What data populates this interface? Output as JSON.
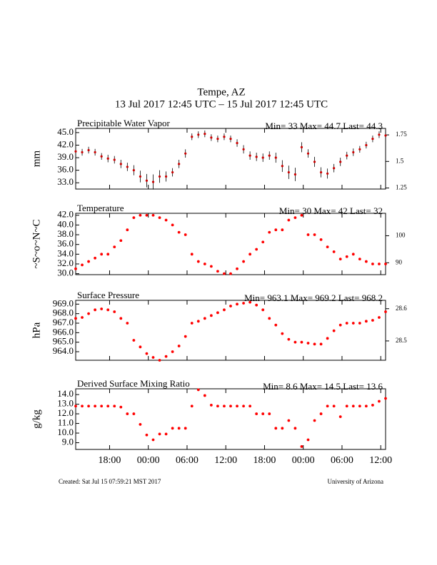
{
  "title": "Tempe, AZ",
  "subtitle": "13 Jul 2017 12:45 UTC – 15 Jul 2017 12:45 UTC",
  "footer_left": "Created: Sat Jul 15 07:59:21 MST 2017",
  "footer_right": "University of Arizona",
  "chart_data": [
    {
      "type": "errorbar",
      "title": "Precipitable Water Vapor",
      "stats": "Min= 33 Max= 44.7 Last= 44.3",
      "ylabel": "mm",
      "color": "#cc0000",
      "x": [
        0,
        1,
        2,
        3,
        4,
        5,
        6,
        7,
        8,
        9,
        10,
        11,
        12,
        13,
        14,
        15,
        16,
        17,
        18,
        19,
        20,
        21,
        22,
        23,
        24,
        25,
        26,
        27,
        28,
        29,
        30,
        31,
        32,
        33,
        34,
        35,
        36,
        37,
        38,
        39,
        40,
        41,
        42,
        43,
        44,
        45,
        46,
        47,
        48
      ],
      "values": [
        40.5,
        40.3,
        40.8,
        40.3,
        39.3,
        38.8,
        38.5,
        37.5,
        36.8,
        36,
        34.5,
        33.5,
        33.2,
        34.5,
        34.5,
        35.5,
        37.5,
        40,
        44,
        44.5,
        44.7,
        43.8,
        43.5,
        44,
        43.5,
        42.5,
        41,
        39.5,
        39.2,
        39,
        39.5,
        39,
        37,
        35.5,
        35,
        41.5,
        40,
        38,
        35.5,
        35.2,
        36.5,
        38,
        39.5,
        40.3,
        41,
        42,
        43.5,
        44.5,
        44.3
      ],
      "errors": [
        0.8,
        0.8,
        0.8,
        0.8,
        0.8,
        0.9,
        0.9,
        1,
        1,
        1.2,
        1.4,
        1.6,
        1.8,
        1.5,
        1.2,
        1,
        1,
        1,
        0.8,
        0.8,
        0.8,
        0.8,
        0.8,
        0.8,
        0.8,
        0.9,
        1,
        1,
        1,
        1,
        1,
        1.2,
        1.4,
        1.6,
        1.6,
        1.2,
        1,
        1.2,
        1.2,
        1.2,
        1,
        1,
        0.9,
        0.9,
        0.8,
        0.8,
        0.8,
        0.8,
        0.8
      ],
      "xlim": [
        0,
        48
      ],
      "ylim": [
        31.5,
        46
      ],
      "yticks": [
        {
          "value": 33,
          "label": "33.0"
        },
        {
          "value": 36,
          "label": "36.0"
        },
        {
          "value": 39,
          "label": "39.0"
        },
        {
          "value": 42,
          "label": "42.0"
        },
        {
          "value": 45,
          "label": "45.0"
        }
      ],
      "y2lim": [
        1.24,
        1.811
      ],
      "y2ticks": [
        1.25,
        1.5,
        1.75
      ]
    },
    {
      "type": "scatter",
      "title": "Temperature",
      "stats": "Min= 30 Max= 42 Last= 32",
      "ylabel": "~S~o~N~C",
      "color": "#ff0000",
      "x": [
        0,
        1,
        2,
        3,
        4,
        5,
        6,
        7,
        8,
        9,
        10,
        11,
        12,
        13,
        14,
        15,
        16,
        17,
        18,
        19,
        20,
        21,
        22,
        23,
        24,
        25,
        26,
        27,
        28,
        29,
        30,
        31,
        32,
        33,
        34,
        35,
        36,
        37,
        38,
        39,
        40,
        41,
        42,
        43,
        44,
        45,
        46,
        47,
        48
      ],
      "values": [
        31,
        31.8,
        32.5,
        33.2,
        34,
        34,
        35.5,
        36.8,
        39,
        41.5,
        42,
        42,
        42,
        41.5,
        41,
        40,
        38.5,
        38,
        34,
        32.5,
        32,
        31.5,
        30.5,
        30,
        30,
        31,
        32.5,
        34,
        35,
        36.5,
        38.5,
        39,
        39,
        41,
        41.5,
        42,
        38,
        38,
        37,
        35.5,
        34.5,
        33,
        33.5,
        34,
        33,
        32.5,
        32,
        32,
        32
      ],
      "xlim": [
        0,
        48
      ],
      "ylim": [
        29.8,
        42.4
      ],
      "yticks": [
        {
          "value": 30,
          "label": "30.0"
        },
        {
          "value": 32,
          "label": "32.0"
        },
        {
          "value": 34,
          "label": "34.0"
        },
        {
          "value": 36,
          "label": "36.0"
        },
        {
          "value": 38,
          "label": "38.0"
        },
        {
          "value": 40,
          "label": "40.0"
        },
        {
          "value": 42,
          "label": "42.0"
        }
      ],
      "y2lim": [
        85.6,
        108.3
      ],
      "y2ticks": [
        90,
        100
      ]
    },
    {
      "type": "scatter",
      "title": "Surface Pressure",
      "stats": "Min= 963.1 Max= 969.2 Last= 968.2",
      "ylabel": "hPa",
      "color": "#ff0000",
      "x": [
        0,
        1,
        2,
        3,
        4,
        5,
        6,
        7,
        8,
        9,
        10,
        11,
        12,
        13,
        14,
        15,
        16,
        17,
        18,
        19,
        20,
        21,
        22,
        23,
        24,
        25,
        26,
        27,
        28,
        29,
        30,
        31,
        32,
        33,
        34,
        35,
        36,
        37,
        38,
        39,
        40,
        41,
        42,
        43,
        44,
        45,
        46,
        47,
        48
      ],
      "values": [
        967.5,
        967.6,
        968,
        968.4,
        968.5,
        968.4,
        968.2,
        967.5,
        967,
        965.2,
        964.5,
        963.8,
        963.4,
        963.1,
        963.5,
        964,
        964.6,
        965.6,
        967,
        967.2,
        967.5,
        967.8,
        968.1,
        968.4,
        968.8,
        969,
        969.1,
        969.2,
        968.9,
        968.4,
        967.5,
        966.8,
        965.9,
        965.3,
        965,
        965,
        964.9,
        964.8,
        964.8,
        965.4,
        966.2,
        966.8,
        967,
        967,
        967,
        967.2,
        967.3,
        967.6,
        968.2
      ],
      "xlim": [
        0,
        48
      ],
      "ylim": [
        963.1,
        969.4
      ],
      "yticks": [
        {
          "value": 964,
          "label": "964.0"
        },
        {
          "value": 965,
          "label": "965.0"
        },
        {
          "value": 966,
          "label": "966.0"
        },
        {
          "value": 967,
          "label": "967.0"
        },
        {
          "value": 968,
          "label": "968.0"
        },
        {
          "value": 969,
          "label": "969.0"
        }
      ],
      "y2lim": [
        28.44,
        28.626
      ],
      "y2ticks": [
        28.5,
        28.6
      ]
    },
    {
      "type": "scatter",
      "title": "Derived Surface Mixing Ratio",
      "stats": "Min= 8.6 Max= 14.5 Last= 13.6",
      "ylabel": "g/kg",
      "color": "#ff0000",
      "x": [
        0,
        1,
        2,
        3,
        4,
        5,
        6,
        7,
        8,
        9,
        10,
        11,
        12,
        13,
        14,
        15,
        16,
        17,
        18,
        19,
        20,
        21,
        22,
        23,
        24,
        25,
        26,
        27,
        28,
        29,
        30,
        31,
        32,
        33,
        34,
        35,
        36,
        37,
        38,
        39,
        40,
        41,
        42,
        43,
        44,
        45,
        46,
        47,
        48
      ],
      "values": [
        12.8,
        12.8,
        12.8,
        12.8,
        12.8,
        12.8,
        12.8,
        12.7,
        12,
        12,
        10.9,
        9.8,
        9.3,
        9.9,
        9.9,
        10.5,
        10.5,
        10.5,
        12.8,
        14.5,
        13.9,
        12.9,
        12.8,
        12.8,
        12.8,
        12.8,
        12.8,
        12.8,
        12,
        12,
        12,
        10.5,
        10.5,
        11.3,
        10.5,
        8.6,
        9.3,
        11.3,
        12,
        12.8,
        12.8,
        11.7,
        12.8,
        12.8,
        12.8,
        12.8,
        12.9,
        13.3,
        13.6
      ],
      "xlim": [
        0,
        48
      ],
      "ylim": [
        8.3,
        14.6
      ],
      "yticks": [
        {
          "value": 9,
          "label": "9.0"
        },
        {
          "value": 10,
          "label": "10.0"
        },
        {
          "value": 11,
          "label": "11.0"
        },
        {
          "value": 12,
          "label": "12.0"
        },
        {
          "value": 13,
          "label": "13.0"
        },
        {
          "value": 14,
          "label": "14.0"
        }
      ],
      "xticks": [
        {
          "value": 5.25,
          "label": "18:00"
        },
        {
          "value": 11.25,
          "label": "00:00"
        },
        {
          "value": 17.25,
          "label": "06:00"
        },
        {
          "value": 23.25,
          "label": "12:00"
        },
        {
          "value": 29.25,
          "label": "18:00"
        },
        {
          "value": 35.25,
          "label": "00:00"
        },
        {
          "value": 41.25,
          "label": "06:00"
        },
        {
          "value": 47.25,
          "label": "12:00"
        }
      ]
    }
  ]
}
